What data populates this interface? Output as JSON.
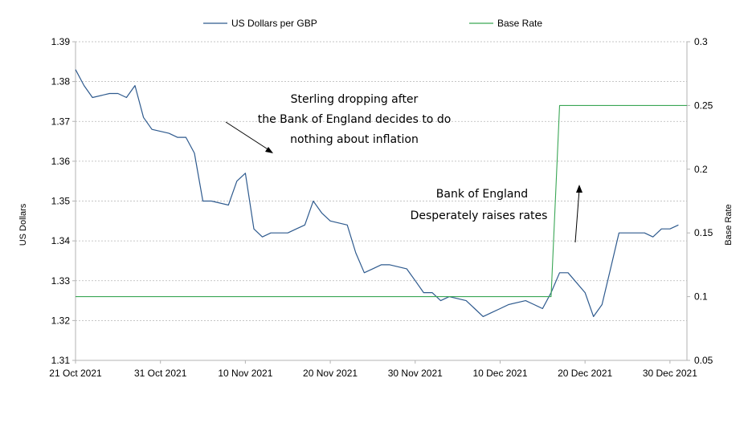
{
  "chart_data": {
    "type": "line",
    "title": "",
    "xlabel": "",
    "ylabel": "US Dollars",
    "y2label": "Base Rate",
    "xlim": [
      "2021-10-21",
      "2022-01-01"
    ],
    "ylim": [
      1.31,
      1.39
    ],
    "y2lim": [
      0.05,
      0.3
    ],
    "x_ticks": [
      "2021-10-21",
      "2021-10-31",
      "2021-11-10",
      "2021-11-20",
      "2021-11-30",
      "2021-12-10",
      "2021-12-20",
      "2021-12-30"
    ],
    "x_tick_labels": [
      "21 Oct 2021",
      "31 Oct 2021",
      "10 Nov 2021",
      "20 Nov 2021",
      "30 Nov 2021",
      "10 Dec 2021",
      "20 Dec 2021",
      "30 Dec 2021"
    ],
    "y_tick_labels": [
      "1.31",
      "1.32",
      "1.33",
      "1.34",
      "1.35",
      "1.36",
      "1.37",
      "1.38",
      "1.39"
    ],
    "y2_tick_labels": [
      "0.05",
      "0.1",
      "0.15",
      "0.2",
      "0.25",
      "0.3"
    ],
    "grid": "horizontal-dashed",
    "legend": "top",
    "series": [
      {
        "name": "US Dollars per GBP",
        "axis": "left",
        "color": "#2e5a8e",
        "points": [
          [
            "2021-10-21",
            1.383
          ],
          [
            "2021-10-22",
            1.379
          ],
          [
            "2021-10-23",
            1.376
          ],
          [
            "2021-10-25",
            1.377
          ],
          [
            "2021-10-26",
            1.377
          ],
          [
            "2021-10-27",
            1.376
          ],
          [
            "2021-10-28",
            1.379
          ],
          [
            "2021-10-29",
            1.371
          ],
          [
            "2021-10-30",
            1.368
          ],
          [
            "2021-11-01",
            1.367
          ],
          [
            "2021-11-02",
            1.366
          ],
          [
            "2021-11-03",
            1.366
          ],
          [
            "2021-11-04",
            1.362
          ],
          [
            "2021-11-05",
            1.35
          ],
          [
            "2021-11-06",
            1.35
          ],
          [
            "2021-11-08",
            1.349
          ],
          [
            "2021-11-09",
            1.355
          ],
          [
            "2021-11-10",
            1.357
          ],
          [
            "2021-11-11",
            1.343
          ],
          [
            "2021-11-12",
            1.341
          ],
          [
            "2021-11-13",
            1.342
          ],
          [
            "2021-11-15",
            1.342
          ],
          [
            "2021-11-16",
            1.343
          ],
          [
            "2021-11-17",
            1.344
          ],
          [
            "2021-11-18",
            1.35
          ],
          [
            "2021-11-19",
            1.347
          ],
          [
            "2021-11-20",
            1.345
          ],
          [
            "2021-11-22",
            1.344
          ],
          [
            "2021-11-23",
            1.337
          ],
          [
            "2021-11-24",
            1.332
          ],
          [
            "2021-11-25",
            1.333
          ],
          [
            "2021-11-26",
            1.334
          ],
          [
            "2021-11-27",
            1.334
          ],
          [
            "2021-11-29",
            1.333
          ],
          [
            "2021-11-30",
            1.33
          ],
          [
            "2021-12-01",
            1.327
          ],
          [
            "2021-12-02",
            1.327
          ],
          [
            "2021-12-03",
            1.325
          ],
          [
            "2021-12-04",
            1.326
          ],
          [
            "2021-12-06",
            1.325
          ],
          [
            "2021-12-07",
            1.323
          ],
          [
            "2021-12-08",
            1.321
          ],
          [
            "2021-12-09",
            1.322
          ],
          [
            "2021-12-10",
            1.323
          ],
          [
            "2021-12-11",
            1.324
          ],
          [
            "2021-12-13",
            1.325
          ],
          [
            "2021-12-14",
            1.324
          ],
          [
            "2021-12-15",
            1.323
          ],
          [
            "2021-12-16",
            1.327
          ],
          [
            "2021-12-17",
            1.332
          ],
          [
            "2021-12-18",
            1.332
          ],
          [
            "2021-12-20",
            1.327
          ],
          [
            "2021-12-21",
            1.321
          ],
          [
            "2021-12-22",
            1.324
          ],
          [
            "2021-12-23",
            1.333
          ],
          [
            "2021-12-24",
            1.342
          ],
          [
            "2021-12-25",
            1.342
          ],
          [
            "2021-12-27",
            1.342
          ],
          [
            "2021-12-28",
            1.341
          ],
          [
            "2021-12-29",
            1.343
          ],
          [
            "2021-12-30",
            1.343
          ],
          [
            "2021-12-31",
            1.344
          ]
        ]
      },
      {
        "name": "Base Rate",
        "axis": "right",
        "color": "#3aa655",
        "points": [
          [
            "2021-10-21",
            0.1
          ],
          [
            "2021-12-16",
            0.1
          ],
          [
            "2021-12-17",
            0.25
          ],
          [
            "2022-01-01",
            0.25
          ]
        ]
      }
    ],
    "annotations": [
      {
        "lines": [
          "Sterling dropping after",
          "the Bank of England decides to do",
          "nothing about inflation"
        ]
      },
      {
        "lines": [
          "Bank of England",
          "Desperately raises rates"
        ]
      }
    ]
  }
}
